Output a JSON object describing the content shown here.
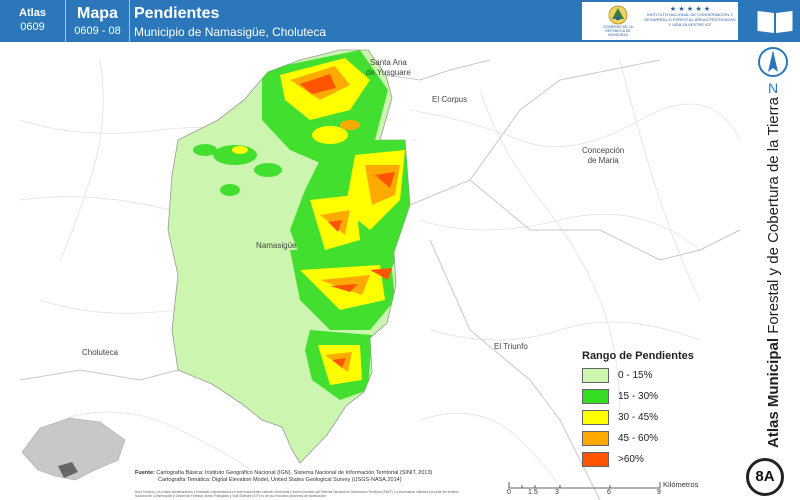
{
  "header": {
    "atlas_label": "Atlas",
    "atlas_code": "0609",
    "mapa_label": "Mapa",
    "mapa_code": "0609 - 08",
    "title": "Pendientes",
    "subtitle": "Municipio de Namasigüe, Choluteca"
  },
  "logos": {
    "gov_text": "GOBIERNO DE LA REPÚBLICA DE HONDURAS",
    "icf_text": "INSTITUTO NACIONAL DE CONSERVACIÓN Y DESARROLLO FORESTAL ÁREAS PROTEGIDAS Y VIDA SILVESTRE ICF",
    "gov_icon": "coat-of-arms-icon",
    "icf_icon": "icf-stars-icon"
  },
  "sidebar": {
    "book_icon": "open-book-icon",
    "north_label": "N",
    "vertical_title_bold": "Atlas Municipal",
    "vertical_title_rest": "Forestal y de Cobertura de la Tierra",
    "page_badge": "8A"
  },
  "places": {
    "santa_ana": "Santa Ana\nde Yusguare",
    "el_corpus": "El Corpus",
    "concepcion": "Concepción\nde Maria",
    "namasigue": "Namasigüe",
    "choluteca": "Choluteca",
    "el_triunfo": "El Triunfo"
  },
  "legend": {
    "title": "Rango de Pendientes",
    "items": [
      {
        "label": "0 - 15%",
        "color": "#ccf5b0"
      },
      {
        "label": "15 - 30%",
        "color": "#33dd22"
      },
      {
        "label": "30 - 45%",
        "color": "#ffff00"
      },
      {
        "label": "45 - 60%",
        "color": "#ffaa00"
      },
      {
        "label": ">60%",
        "color": "#ff5500"
      }
    ]
  },
  "source": {
    "label": "Fuente:",
    "line1": "Cartografía Básica: Instituto Geográfico Nacional (IGN), Sistema Nacional de Información Territorial (SINIT, 2013)",
    "line2": "Cartografía Temática: Digital Elevation Model, United States Geological Survey (USGS-NASA,2014)",
    "note": "Nota Técnica: Los límites administrativos y forestales representados en este mapa tienen carácter referencial y fueron tomados del Sistema Nacional de Información Territorial (SINIT). La información utilizada por parte del Instituto Nacional de Conservación y Desarrollo Forestal, Áreas Protegidas y Vida Silvestre (ICF) es de uso exclusivo para fines de planificación."
  },
  "scale": {
    "label": "Kilómetros",
    "ticks": [
      "0",
      "1.5",
      "3",
      "6",
      "9"
    ]
  },
  "colors": {
    "header_blue": "#2b77b9",
    "map_background": "#ffffff",
    "road_color": "#dddddd",
    "border_color": "#c8c8c8"
  }
}
